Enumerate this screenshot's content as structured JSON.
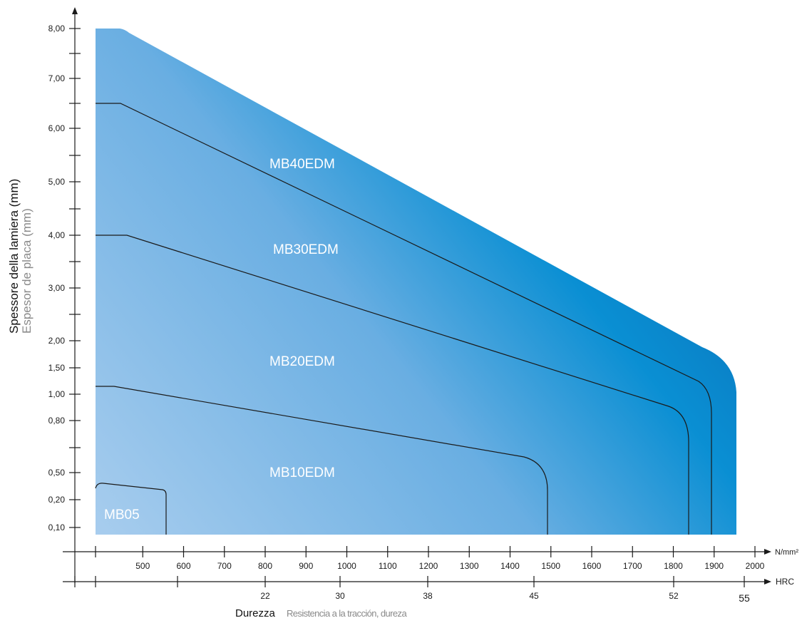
{
  "chart_data": {
    "type": "area",
    "y_axis": {
      "title_primary": "Spessore della lamiera (mm)",
      "title_secondary": "Espesor de placa (mm)",
      "tick_labels": [
        "8,00",
        "7,00",
        "6,00",
        "5,00",
        "4,00",
        "3,00",
        "2,00",
        "1,50",
        "1,00",
        "0,80",
        "0,50",
        "0,20",
        "0,10"
      ]
    },
    "x_axis": {
      "unit": "N/mm²",
      "tick_labels": [
        "500",
        "600",
        "700",
        "800",
        "900",
        "1000",
        "1100",
        "1200",
        "1300",
        "1400",
        "1500",
        "1600",
        "1700",
        "1800",
        "1900",
        "2000"
      ],
      "range": [
        400,
        2000
      ]
    },
    "hrc_axis": {
      "unit": "HRC",
      "tick_labels": [
        "22",
        "30",
        "38",
        "45",
        "52",
        "55"
      ]
    },
    "x_title_primary": "Durezza",
    "x_title_secondary": "Resistencia a la tracción, dureza",
    "regions": [
      {
        "name": "MB05",
        "max_strength": 560,
        "thickness_at_min": "0,30"
      },
      {
        "name": "MB10EDM",
        "max_strength": 1490,
        "thickness_at_min": "1,15"
      },
      {
        "name": "MB20EDM",
        "max_strength": 1840,
        "thickness_at_min": "4,00"
      },
      {
        "name": "MB30EDM",
        "max_strength": 1890,
        "thickness_at_min": "6,50"
      },
      {
        "name": "MB40EDM",
        "max_strength": 1950,
        "thickness_at_min": "8,00"
      }
    ],
    "colors": {
      "fill_light": "#a8cdee",
      "fill_mid": "#3f9ad8",
      "fill_dark": "#0a64b0",
      "boundary": "#1a1a1a"
    }
  }
}
